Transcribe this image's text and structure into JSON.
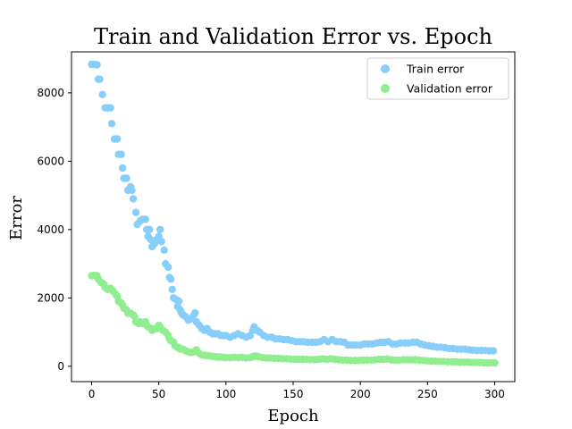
{
  "chart_data": {
    "type": "scatter",
    "title": "Train and Validation Error vs. Epoch",
    "xlabel": "Epoch",
    "ylabel": "Error",
    "xlim": [
      -15,
      315
    ],
    "ylim": [
      -450,
      9200
    ],
    "xticks": [
      0,
      50,
      100,
      150,
      200,
      250,
      300
    ],
    "yticks": [
      0,
      2000,
      4000,
      6000,
      8000
    ],
    "legend_position": "top-right",
    "grid": false,
    "series": [
      {
        "name": "Train error",
        "color": "#87CEFA",
        "points": [
          [
            0,
            8830
          ],
          [
            2,
            8830
          ],
          [
            4,
            8820
          ],
          [
            5,
            8400
          ],
          [
            6,
            8400
          ],
          [
            8,
            7950
          ],
          [
            10,
            7560
          ],
          [
            12,
            7560
          ],
          [
            14,
            7560
          ],
          [
            15,
            7100
          ],
          [
            17,
            6650
          ],
          [
            19,
            6650
          ],
          [
            20,
            6200
          ],
          [
            22,
            6200
          ],
          [
            23,
            5800
          ],
          [
            24,
            5500
          ],
          [
            26,
            5500
          ],
          [
            27,
            5150
          ],
          [
            29,
            5250
          ],
          [
            30,
            5150
          ],
          [
            31,
            4900
          ],
          [
            33,
            4500
          ],
          [
            34,
            4150
          ],
          [
            36,
            4250
          ],
          [
            38,
            4300
          ],
          [
            40,
            4300
          ],
          [
            41,
            4000
          ],
          [
            42,
            3800
          ],
          [
            43,
            4000
          ],
          [
            44,
            3700
          ],
          [
            45,
            3500
          ],
          [
            47,
            3600
          ],
          [
            48,
            3700
          ],
          [
            50,
            3800
          ],
          [
            51,
            4000
          ],
          [
            52,
            3650
          ],
          [
            54,
            3400
          ],
          [
            55,
            3000
          ],
          [
            57,
            2900
          ],
          [
            58,
            2600
          ],
          [
            59,
            2550
          ],
          [
            60,
            2250
          ],
          [
            61,
            2000
          ],
          [
            63,
            1950
          ],
          [
            64,
            1750
          ],
          [
            65,
            1900
          ],
          [
            66,
            1650
          ],
          [
            67,
            1550
          ],
          [
            68,
            1500
          ],
          [
            70,
            1450
          ],
          [
            72,
            1350
          ],
          [
            74,
            1400
          ],
          [
            76,
            1500
          ],
          [
            77,
            1560
          ],
          [
            78,
            1300
          ],
          [
            80,
            1200
          ],
          [
            82,
            1100
          ],
          [
            84,
            1050
          ],
          [
            86,
            1100
          ],
          [
            88,
            1000
          ],
          [
            90,
            950
          ],
          [
            92,
            950
          ],
          [
            94,
            950
          ],
          [
            96,
            900
          ],
          [
            98,
            900
          ],
          [
            100,
            900
          ],
          [
            103,
            850
          ],
          [
            106,
            900
          ],
          [
            109,
            950
          ],
          [
            112,
            900
          ],
          [
            115,
            850
          ],
          [
            118,
            900
          ],
          [
            120,
            1050
          ],
          [
            121,
            1150
          ],
          [
            123,
            1050
          ],
          [
            125,
            1000
          ],
          [
            128,
            900
          ],
          [
            131,
            850
          ],
          [
            134,
            850
          ],
          [
            137,
            800
          ],
          [
            140,
            800
          ],
          [
            143,
            780
          ],
          [
            146,
            780
          ],
          [
            149,
            750
          ],
          [
            152,
            720
          ],
          [
            155,
            720
          ],
          [
            158,
            720
          ],
          [
            161,
            700
          ],
          [
            164,
            700
          ],
          [
            167,
            700
          ],
          [
            170,
            720
          ],
          [
            173,
            780
          ],
          [
            176,
            720
          ],
          [
            179,
            780
          ],
          [
            182,
            720
          ],
          [
            185,
            720
          ],
          [
            188,
            700
          ],
          [
            191,
            620
          ],
          [
            194,
            620
          ],
          [
            197,
            620
          ],
          [
            200,
            620
          ],
          [
            203,
            650
          ],
          [
            206,
            650
          ],
          [
            209,
            650
          ],
          [
            212,
            680
          ],
          [
            215,
            700
          ],
          [
            218,
            700
          ],
          [
            221,
            720
          ],
          [
            224,
            650
          ],
          [
            227,
            650
          ],
          [
            230,
            680
          ],
          [
            233,
            680
          ],
          [
            236,
            680
          ],
          [
            239,
            700
          ],
          [
            242,
            700
          ],
          [
            245,
            650
          ],
          [
            248,
            620
          ],
          [
            251,
            600
          ],
          [
            254,
            580
          ],
          [
            257,
            560
          ],
          [
            260,
            560
          ],
          [
            263,
            540
          ],
          [
            266,
            520
          ],
          [
            269,
            520
          ],
          [
            272,
            500
          ],
          [
            275,
            500
          ],
          [
            278,
            500
          ],
          [
            281,
            480
          ],
          [
            284,
            470
          ],
          [
            287,
            460
          ],
          [
            290,
            460
          ],
          [
            293,
            460
          ],
          [
            296,
            450
          ],
          [
            299,
            450
          ]
        ]
      },
      {
        "name": "Validation error",
        "color": "#90EE90",
        "points": [
          [
            0,
            2650
          ],
          [
            2,
            2660
          ],
          [
            4,
            2650
          ],
          [
            5,
            2550
          ],
          [
            7,
            2450
          ],
          [
            9,
            2400
          ],
          [
            10,
            2300
          ],
          [
            12,
            2250
          ],
          [
            14,
            2280
          ],
          [
            16,
            2200
          ],
          [
            18,
            2100
          ],
          [
            19,
            2050
          ],
          [
            20,
            1900
          ],
          [
            22,
            1850
          ],
          [
            23,
            1800
          ],
          [
            24,
            1700
          ],
          [
            26,
            1650
          ],
          [
            27,
            1550
          ],
          [
            29,
            1550
          ],
          [
            31,
            1500
          ],
          [
            32,
            1450
          ],
          [
            33,
            1300
          ],
          [
            35,
            1250
          ],
          [
            36,
            1300
          ],
          [
            38,
            1250
          ],
          [
            40,
            1300
          ],
          [
            41,
            1200
          ],
          [
            42,
            1150
          ],
          [
            44,
            1100
          ],
          [
            45,
            1050
          ],
          [
            47,
            1100
          ],
          [
            49,
            1100
          ],
          [
            50,
            1200
          ],
          [
            51,
            1150
          ],
          [
            53,
            1050
          ],
          [
            55,
            1000
          ],
          [
            57,
            900
          ],
          [
            58,
            800
          ],
          [
            59,
            750
          ],
          [
            61,
            700
          ],
          [
            62,
            600
          ],
          [
            64,
            550
          ],
          [
            65,
            550
          ],
          [
            66,
            500
          ],
          [
            68,
            500
          ],
          [
            70,
            450
          ],
          [
            72,
            420
          ],
          [
            74,
            400
          ],
          [
            76,
            420
          ],
          [
            78,
            480
          ],
          [
            80,
            380
          ],
          [
            82,
            330
          ],
          [
            84,
            320
          ],
          [
            86,
            310
          ],
          [
            88,
            300
          ],
          [
            90,
            290
          ],
          [
            92,
            280
          ],
          [
            94,
            270
          ],
          [
            96,
            270
          ],
          [
            98,
            260
          ],
          [
            100,
            250
          ],
          [
            103,
            250
          ],
          [
            106,
            260
          ],
          [
            109,
            250
          ],
          [
            112,
            260
          ],
          [
            115,
            240
          ],
          [
            118,
            250
          ],
          [
            120,
            280
          ],
          [
            122,
            300
          ],
          [
            124,
            280
          ],
          [
            127,
            250
          ],
          [
            130,
            240
          ],
          [
            133,
            240
          ],
          [
            136,
            230
          ],
          [
            139,
            230
          ],
          [
            142,
            220
          ],
          [
            145,
            220
          ],
          [
            148,
            210
          ],
          [
            151,
            200
          ],
          [
            154,
            200
          ],
          [
            157,
            200
          ],
          [
            160,
            200
          ],
          [
            163,
            190
          ],
          [
            166,
            190
          ],
          [
            169,
            200
          ],
          [
            172,
            220
          ],
          [
            175,
            200
          ],
          [
            178,
            220
          ],
          [
            181,
            200
          ],
          [
            184,
            190
          ],
          [
            187,
            180
          ],
          [
            190,
            180
          ],
          [
            193,
            170
          ],
          [
            196,
            170
          ],
          [
            199,
            170
          ],
          [
            202,
            180
          ],
          [
            205,
            180
          ],
          [
            208,
            180
          ],
          [
            211,
            190
          ],
          [
            214,
            200
          ],
          [
            217,
            200
          ],
          [
            220,
            210
          ],
          [
            223,
            190
          ],
          [
            226,
            180
          ],
          [
            229,
            180
          ],
          [
            232,
            190
          ],
          [
            235,
            190
          ],
          [
            238,
            190
          ],
          [
            241,
            190
          ],
          [
            244,
            180
          ],
          [
            247,
            170
          ],
          [
            250,
            160
          ],
          [
            253,
            150
          ],
          [
            256,
            150
          ],
          [
            259,
            140
          ],
          [
            262,
            140
          ],
          [
            265,
            130
          ],
          [
            268,
            130
          ],
          [
            271,
            130
          ],
          [
            274,
            120
          ],
          [
            277,
            120
          ],
          [
            280,
            120
          ],
          [
            283,
            110
          ],
          [
            286,
            110
          ],
          [
            289,
            110
          ],
          [
            292,
            100
          ],
          [
            295,
            100
          ],
          [
            298,
            100
          ],
          [
            300,
            100
          ]
        ]
      }
    ]
  }
}
